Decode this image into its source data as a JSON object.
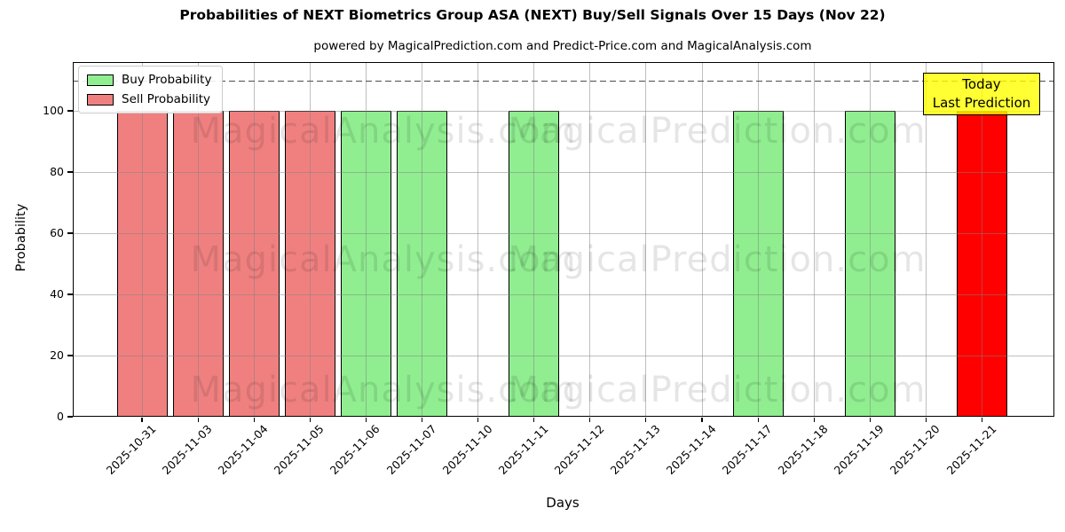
{
  "title": "Probabilities of NEXT Biometrics Group ASA (NEXT) Buy/Sell Signals Over 15 Days (Nov 22)",
  "subtitle": "powered by MagicalPrediction.com and Predict-Price.com and MagicalAnalysis.com",
  "watermarks": {
    "col1": "MagicalAnalysis.com",
    "col2": "MagicalPrediction.com"
  },
  "annotation": {
    "line1": "Today",
    "line2": "Last Prediction",
    "bg_color": "#ffff00"
  },
  "legend": [
    {
      "label": "Buy Probability",
      "color": "#90ee90"
    },
    {
      "label": "Sell Probability",
      "color": "#f08080"
    }
  ],
  "colors": {
    "buy": "#90ee90",
    "sell": "#f08080",
    "today_sell": "#ff0000",
    "grid": "#b0b0b0",
    "threshold": "#4d4d4d"
  },
  "chart_data": {
    "type": "bar",
    "title": "Probabilities of NEXT Biometrics Group ASA (NEXT) Buy/Sell Signals Over 15 Days (Nov 22)",
    "xlabel": "Days",
    "ylabel": "Probability",
    "categories": [
      "2025-10-31",
      "2025-11-03",
      "2025-11-04",
      "2025-11-05",
      "2025-11-06",
      "2025-11-07",
      "2025-11-10",
      "2025-11-11",
      "2025-11-12",
      "2025-11-13",
      "2025-11-14",
      "2025-11-17",
      "2025-11-18",
      "2025-11-19",
      "2025-11-20",
      "2025-11-21"
    ],
    "series": [
      {
        "name": "Buy Probability",
        "color": "#90ee90",
        "values": [
          0,
          0,
          0,
          0,
          100,
          100,
          0,
          100,
          0,
          0,
          0,
          100,
          0,
          100,
          0,
          0
        ]
      },
      {
        "name": "Sell Probability",
        "color": "#f08080",
        "values": [
          100,
          100,
          100,
          100,
          0,
          0,
          0,
          0,
          0,
          0,
          0,
          0,
          0,
          0,
          0,
          0
        ]
      },
      {
        "name": "Today Last Prediction (Sell)",
        "color": "#ff0000",
        "values": [
          0,
          0,
          0,
          0,
          0,
          0,
          0,
          0,
          0,
          0,
          0,
          0,
          0,
          0,
          0,
          100
        ]
      }
    ],
    "yticks": [
      0,
      20,
      40,
      60,
      80,
      100
    ],
    "ylim": [
      0,
      116
    ],
    "threshold_line": {
      "y": 110,
      "style": "dashed"
    },
    "grid": true,
    "legend_position": "upper left"
  }
}
